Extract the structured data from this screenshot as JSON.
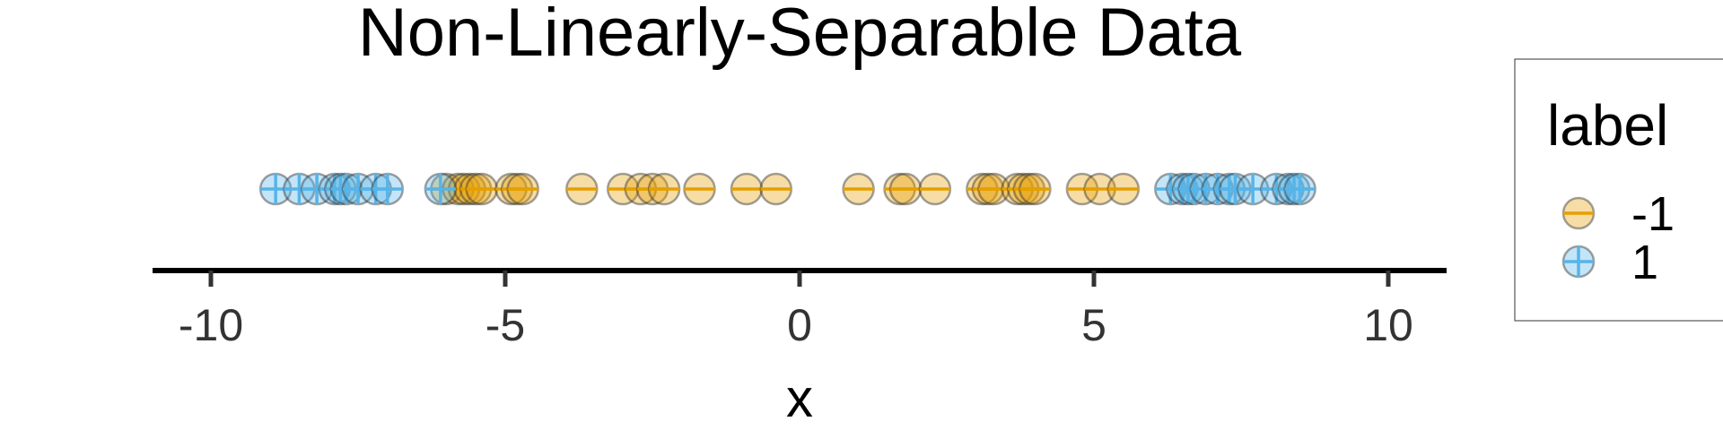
{
  "chart_data": {
    "type": "scatter",
    "title": "Non-Linearly-Separable Data",
    "xlabel": "x",
    "xlim": [
      -11,
      11
    ],
    "xticks": [
      -10,
      -5,
      0,
      5,
      10
    ],
    "y_axis_shown": false,
    "grid": false,
    "legend": {
      "title": "label",
      "placement": "right"
    },
    "series": [
      {
        "name": "-1",
        "color": "#E69F00",
        "glyph": "circle-minus",
        "x": [
          -6.0,
          -5.8,
          -5.7,
          -5.6,
          -5.5,
          -5.4,
          -4.9,
          -4.8,
          -4.7,
          -3.7,
          -3.0,
          -2.7,
          -2.5,
          -2.3,
          -1.7,
          -0.9,
          -0.4,
          1.0,
          1.7,
          1.8,
          2.3,
          3.1,
          3.2,
          3.3,
          3.7,
          3.8,
          3.9,
          4.0,
          4.8,
          5.1,
          5.5
        ]
      },
      {
        "name": "1",
        "color": "#56B4E9",
        "glyph": "circle-plus",
        "x": [
          -8.9,
          -8.5,
          -8.2,
          -7.9,
          -7.8,
          -7.7,
          -7.5,
          -7.2,
          -7.0,
          -6.1,
          6.3,
          6.5,
          6.6,
          6.7,
          6.9,
          7.1,
          7.3,
          7.4,
          7.7,
          8.1,
          8.3,
          8.4,
          8.5
        ]
      }
    ]
  }
}
